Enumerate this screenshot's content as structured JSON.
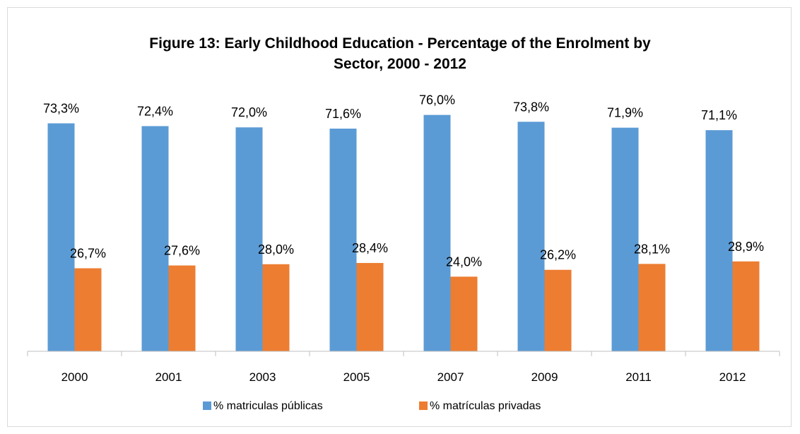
{
  "chart_data": {
    "type": "bar",
    "title": "Figure 13: Early Childhood Education - Percentage of the Enrolment by Sector, 2000 - 2012",
    "title_lines": [
      "Figure 13: Early Childhood Education - Percentage of the Enrolment by",
      "Sector, 2000 - 2012"
    ],
    "categories": [
      "2000",
      "2001",
      "2003",
      "2005",
      "2007",
      "2009",
      "2011",
      "2012"
    ],
    "series": [
      {
        "name": "% matriculas públicas",
        "color": "#5b9bd5",
        "values": [
          73.3,
          72.4,
          72.0,
          71.6,
          76.0,
          73.8,
          71.9,
          71.1
        ],
        "labels": [
          "73,3%",
          "72,4%",
          "72,0%",
          "71,6%",
          "76,0%",
          "73,8%",
          "71,9%",
          "71,1%"
        ]
      },
      {
        "name": "% matrículas privadas",
        "color": "#ed7d31",
        "values": [
          26.7,
          27.6,
          28.0,
          28.4,
          24.0,
          26.2,
          28.1,
          28.9
        ],
        "labels": [
          "26,7%",
          "27,6%",
          "28,0%",
          "28,4%",
          "24,0%",
          "26,2%",
          "28,1%",
          "28,9%"
        ]
      }
    ],
    "xlabel": "",
    "ylabel": "",
    "ylim": [
      0,
      80
    ],
    "grid": false,
    "legend_position": "bottom"
  }
}
